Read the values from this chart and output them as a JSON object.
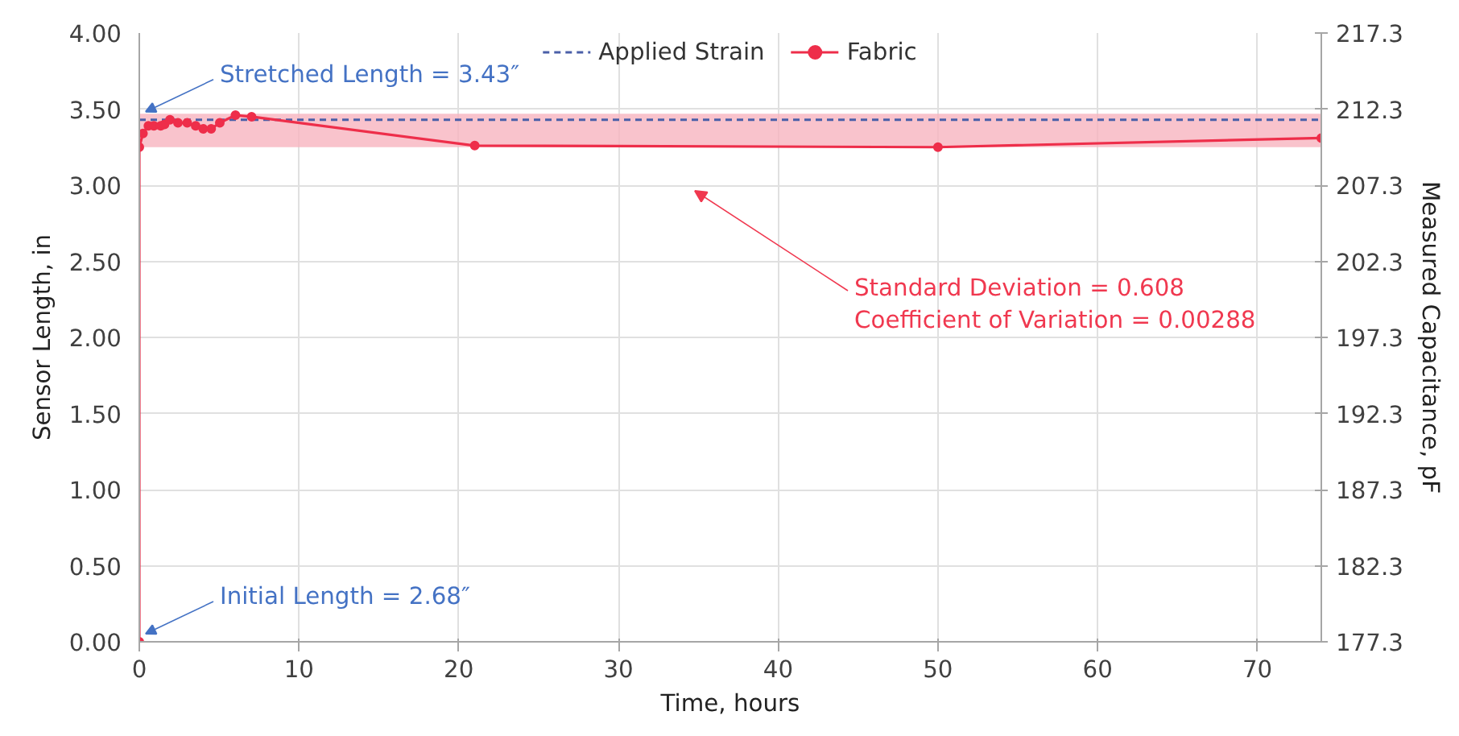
{
  "chart_data": {
    "type": "line",
    "xlabel": "Time, hours",
    "ylabel": "Sensor Length, in",
    "y2label": "Measured Capacitance, pF",
    "xlim": [
      0,
      74
    ],
    "xticks": [
      0,
      10,
      20,
      30,
      40,
      50,
      60,
      70
    ],
    "ylim": [
      0,
      4
    ],
    "yticks": [
      {
        "value": 0,
        "label": "0.00"
      },
      {
        "value": 0.5,
        "label": "0.50"
      },
      {
        "value": 1,
        "label": "1.00"
      },
      {
        "value": 1.5,
        "label": "1.50"
      },
      {
        "value": 2,
        "label": "2.00"
      },
      {
        "value": 2.5,
        "label": "2.50"
      },
      {
        "value": 3,
        "label": "3.00"
      },
      {
        "value": 3.5,
        "label": "3.50"
      },
      {
        "value": 4,
        "label": "4.00"
      }
    ],
    "y2lim": [
      177.3,
      217.3
    ],
    "y2ticks": [
      177.3,
      182.3,
      187.3,
      192.3,
      197.3,
      202.3,
      207.3,
      212.3,
      217.3
    ],
    "grid": true,
    "legend": "top",
    "series": [
      {
        "name": "Applied Strain",
        "color": "#4a5fa8",
        "line_style": "dashed",
        "marker": "none",
        "x": [
          0,
          74
        ],
        "values": [
          3.43,
          3.43
        ]
      },
      {
        "name": "Fabric",
        "color": "#ee2e4a",
        "axis": "y2",
        "line_style": "solid",
        "marker": "circle",
        "x": [
          0,
          0,
          0.23,
          0.57,
          0.91,
          1.34,
          1.58,
          1.92,
          2.42,
          3.0,
          3.53,
          4.0,
          4.5,
          5.04,
          6.02,
          7.03,
          21.0,
          50.0,
          74.0
        ],
        "values": [
          177.3,
          209.8,
          210.7,
          211.2,
          211.2,
          211.2,
          211.3,
          211.6,
          211.4,
          211.4,
          211.2,
          211.0,
          211.0,
          211.4,
          211.9,
          211.8,
          209.9,
          209.8,
          210.4
        ]
      }
    ],
    "bands": [
      {
        "axis": "y",
        "from": 3.25,
        "to": 3.47,
        "color": "#f7b4bf"
      }
    ],
    "annotations": [
      {
        "text": "Stretched Length = 3.43″",
        "x": 0,
        "y": 3.43
      },
      {
        "text": "Initial Length = 2.68″",
        "x": 0,
        "y": 0
      },
      "Standard Deviation = 0.608",
      "Coefficient of Variation = 0.00288"
    ]
  }
}
